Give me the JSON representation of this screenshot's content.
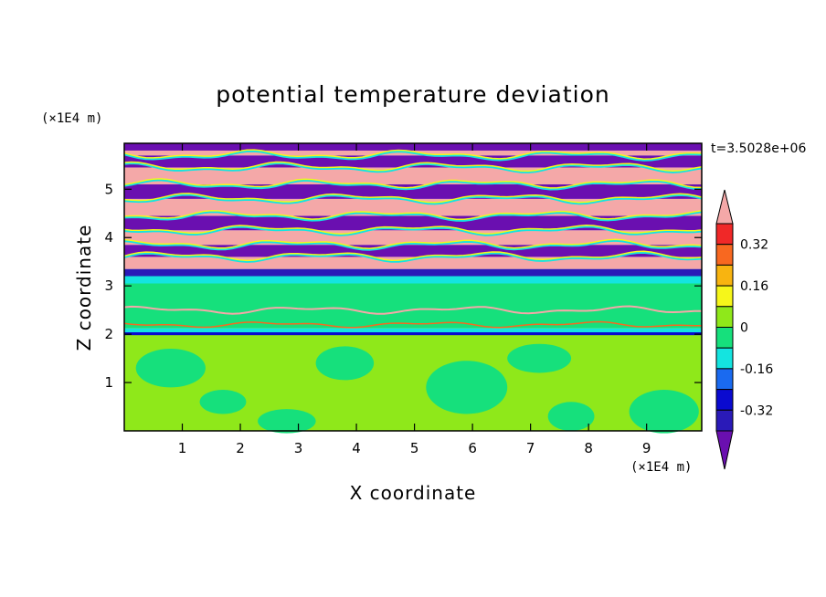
{
  "chart_data": {
    "type": "heatmap",
    "title": "potential temperature deviation",
    "xlabel": "X coordinate",
    "ylabel": "Z coordinate",
    "x_unit": "(×1E4 m)",
    "y_unit": "(×1E4 m)",
    "time_label": "t=3.5028e+06",
    "xlim": [
      0,
      9.95
    ],
    "ylim": [
      0,
      5.95
    ],
    "x_ticks": [
      "1",
      "2",
      "3",
      "4",
      "5",
      "6",
      "7",
      "8",
      "9"
    ],
    "y_ticks": [
      "1",
      "2",
      "3",
      "4",
      "5"
    ],
    "colorbar": {
      "levels": [
        -0.4,
        -0.32,
        -0.24,
        -0.16,
        -0.08,
        0,
        0.08,
        0.16,
        0.24,
        0.32,
        0.4
      ],
      "tick_labels": [
        "0.32",
        "0.16",
        "0",
        "-0.16",
        "-0.32"
      ],
      "colors": [
        "#6a0fb0",
        "#2a1ab8",
        "#0a0ad0",
        "#1a6af0",
        "#14e4e0",
        "#16e07c",
        "#8fe81a",
        "#f6f61a",
        "#f8b410",
        "#f86820",
        "#f02828",
        "#f4a8a8"
      ]
    },
    "layers": [
      {
        "z": [
          0.0,
          2.0
        ],
        "description_level": "0 to 0.08 with -0.08..0 patches",
        "mean": 0.02
      },
      {
        "z": [
          2.0,
          2.1
        ],
        "mean": -0.2
      },
      {
        "z": [
          2.1,
          3.2
        ],
        "mean": -0.03
      },
      {
        "z": [
          3.2,
          3.4
        ],
        "mean": -0.3
      },
      {
        "z": [
          3.4,
          5.95
        ],
        "mean": "alternating > 0.4 and < -0.4 bands"
      }
    ]
  }
}
